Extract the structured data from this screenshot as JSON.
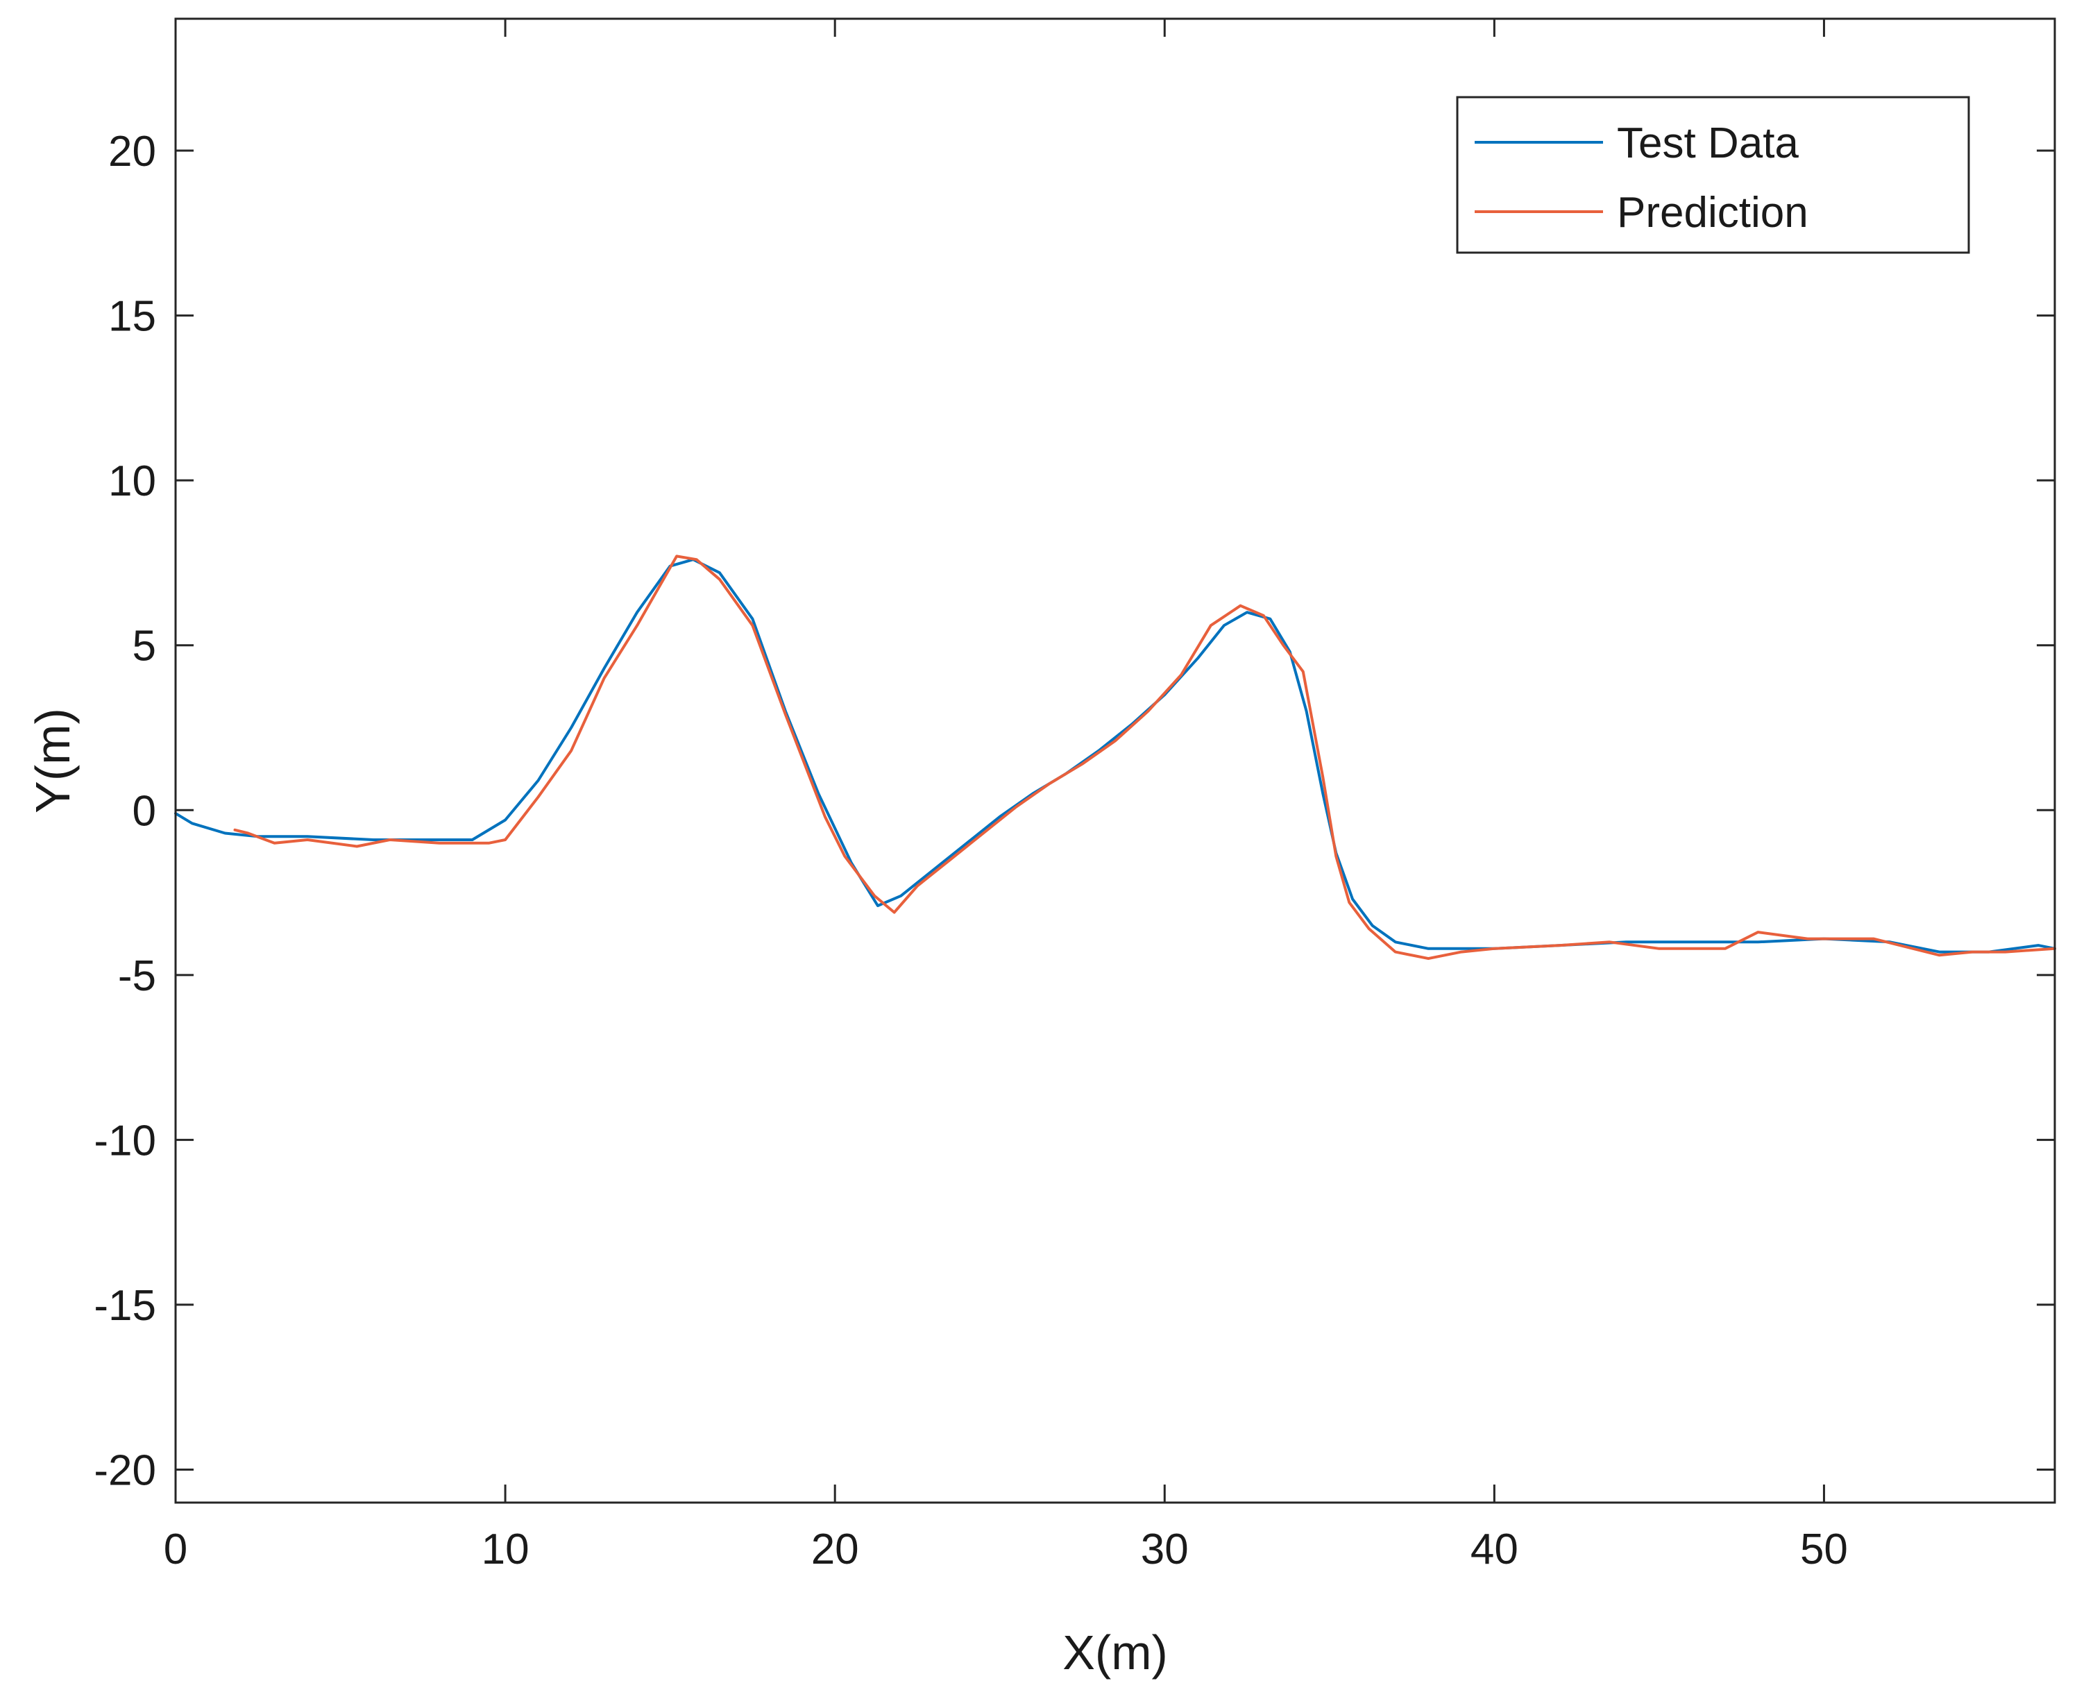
{
  "chart_data": {
    "type": "line",
    "title": "",
    "xlabel": "X(m)",
    "ylabel": "Y(m)",
    "xlim": [
      0,
      57
    ],
    "ylim": [
      -21,
      24
    ],
    "xticks": [
      0,
      10,
      20,
      30,
      40,
      50
    ],
    "yticks": [
      -20,
      -15,
      -10,
      -5,
      0,
      5,
      10,
      15,
      20
    ],
    "xtick_labels": [
      "0",
      "10",
      "20",
      "30",
      "40",
      "50"
    ],
    "ytick_labels": [
      "-20",
      "-15",
      "-10",
      "-5",
      "0",
      "5",
      "10",
      "15",
      "20"
    ],
    "grid": false,
    "legend_position": "top-right",
    "series": [
      {
        "name": "Test Data",
        "color": "#0072BD",
        "x": [
          0,
          0.5,
          1.5,
          2.5,
          4,
          6,
          7.5,
          9,
          10,
          11,
          12,
          13,
          14,
          15,
          15.7,
          16.5,
          17.5,
          18.5,
          19.5,
          20.5,
          21.3,
          22,
          23,
          24,
          25,
          26,
          27,
          28,
          29,
          30,
          31,
          31.8,
          32.5,
          33.2,
          33.8,
          34.3,
          34.8,
          35.2,
          35.7,
          36.3,
          37,
          38,
          39,
          40,
          42,
          44,
          46,
          48,
          50,
          52,
          53.5,
          55,
          56.5,
          57
        ],
        "y": [
          -0.1,
          -0.4,
          -0.7,
          -0.8,
          -0.8,
          -0.9,
          -0.9,
          -0.9,
          -0.3,
          0.9,
          2.5,
          4.3,
          6.0,
          7.4,
          7.6,
          7.2,
          5.8,
          3.0,
          0.5,
          -1.6,
          -2.9,
          -2.6,
          -1.8,
          -1.0,
          -0.2,
          0.5,
          1.1,
          1.8,
          2.6,
          3.5,
          4.6,
          5.6,
          6.0,
          5.8,
          4.8,
          3.0,
          0.5,
          -1.3,
          -2.7,
          -3.5,
          -4.0,
          -4.2,
          -4.2,
          -4.2,
          -4.1,
          -4.0,
          -4.0,
          -4.0,
          -3.9,
          -4.0,
          -4.3,
          -4.3,
          -4.1,
          -4.2
        ]
      },
      {
        "name": "Prediction",
        "color": "#E8603C",
        "x": [
          1.8,
          2.2,
          3,
          4,
          5.5,
          6.5,
          8,
          9.5,
          10,
          11,
          12,
          13,
          14,
          15.2,
          15.8,
          16.5,
          17.5,
          18.5,
          19.7,
          20.3,
          21.2,
          21.8,
          22.5,
          23.5,
          24.5,
          25.5,
          26.5,
          27.5,
          28.5,
          29.5,
          30.5,
          31.4,
          32.3,
          33,
          33.6,
          34.2,
          34.8,
          35.2,
          35.6,
          36.2,
          37,
          38,
          39,
          40,
          42,
          43.5,
          45,
          47,
          48,
          49.5,
          51.5,
          53.5,
          54.5,
          55.5,
          57
        ],
        "y": [
          -0.6,
          -0.7,
          -1.0,
          -0.9,
          -1.1,
          -0.9,
          -1.0,
          -1.0,
          -0.9,
          0.4,
          1.8,
          4.0,
          5.6,
          7.7,
          7.6,
          7.0,
          5.6,
          2.9,
          -0.2,
          -1.4,
          -2.6,
          -3.1,
          -2.3,
          -1.5,
          -0.7,
          0.1,
          0.8,
          1.4,
          2.1,
          3.0,
          4.1,
          5.6,
          6.2,
          5.9,
          5.0,
          4.2,
          1.0,
          -1.4,
          -2.8,
          -3.6,
          -4.3,
          -4.5,
          -4.3,
          -4.2,
          -4.1,
          -4.0,
          -4.2,
          -4.2,
          -3.7,
          -3.9,
          -3.9,
          -4.4,
          -4.3,
          -4.3,
          -4.2
        ]
      }
    ]
  }
}
